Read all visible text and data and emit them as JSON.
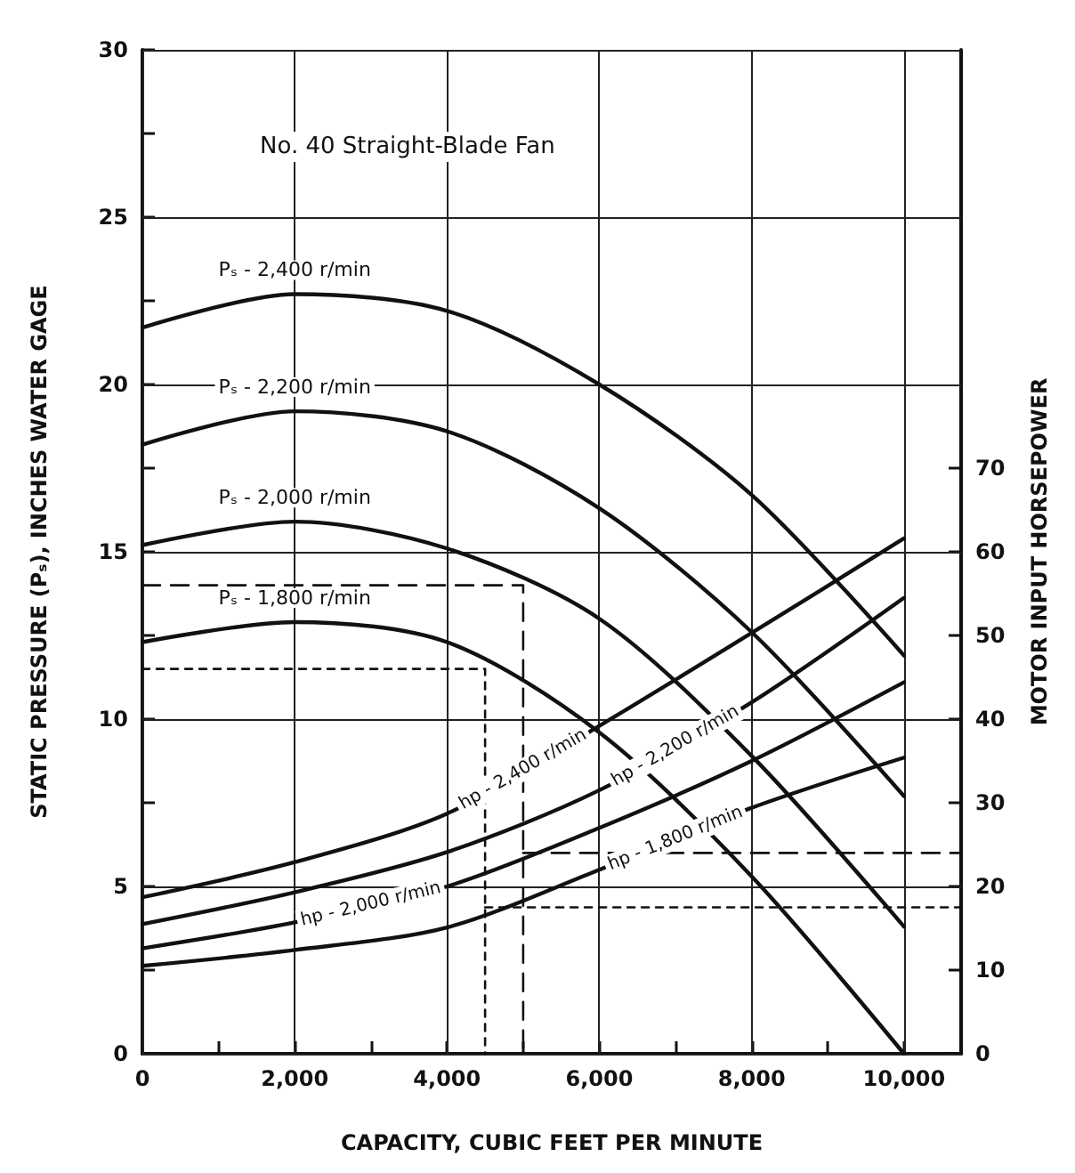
{
  "chart_data": {
    "type": "line",
    "annotations": [
      "No. 40 Straight-Blade Fan"
    ],
    "xlabel": "CAPACITY, CUBIC FEET PER MINUTE",
    "ylabel": "STATIC PRESSURE (Pₛ), INCHES WATER GAGE",
    "y2label": "MOTOR INPUT HORSEPOWER",
    "x": [
      0,
      2000,
      4000,
      6000,
      8000,
      10000
    ],
    "xlim": [
      0,
      10750
    ],
    "xticks": [
      0,
      {
        "value": 1000,
        "label": null
      },
      {
        "value": 2000,
        "label": "2,000"
      },
      {
        "value": 3000,
        "label": null
      },
      {
        "value": 4000,
        "label": "4,000"
      },
      {
        "value": 5000,
        "label": null
      },
      {
        "value": 6000,
        "label": "6,000"
      },
      {
        "value": 7000,
        "label": null
      },
      {
        "value": 8000,
        "label": "8,000"
      },
      {
        "value": 9000,
        "label": null
      },
      {
        "value": 10000,
        "label": "10,000"
      }
    ],
    "ylim": [
      0,
      30
    ],
    "yticks": [
      0,
      {
        "value": 2.5,
        "label": null
      },
      5,
      {
        "value": 7.5,
        "label": null
      },
      10,
      {
        "value": 12.5,
        "label": null
      },
      15,
      {
        "value": 17.5,
        "label": null
      },
      20,
      {
        "value": 22.5,
        "label": null
      },
      25,
      {
        "value": 27.5,
        "label": null
      },
      30
    ],
    "y2lim": [
      0,
      120
    ],
    "y2ticks": [
      0,
      10,
      20,
      30,
      40,
      50,
      60,
      70
    ],
    "grid": true,
    "legend": false,
    "marker": "none",
    "line_style": "solid",
    "series": [
      {
        "name": "Pₛ - 2,400 r/min",
        "color": "#111111",
        "values": [
          21.7,
          22.7,
          22.2,
          20.0,
          16.7,
          11.9
        ]
      },
      {
        "name": "Pₛ - 2,200 r/min",
        "color": "#111111",
        "values": [
          18.2,
          19.2,
          18.6,
          16.3,
          12.6,
          7.7
        ]
      },
      {
        "name": "Pₛ - 2,000 r/min",
        "color": "#111111",
        "values": [
          15.2,
          15.9,
          15.1,
          13.0,
          8.9,
          3.8
        ]
      },
      {
        "name": "Pₛ - 1,800 r/min",
        "color": "#111111",
        "values": [
          12.3,
          12.9,
          12.3,
          9.6,
          5.3,
          0
        ]
      },
      {
        "name": "hp - 2,400 r/min",
        "color": "#111111",
        "axis": "y2",
        "values": [
          18.7,
          22.9,
          28.7,
          39.2,
          50.3,
          61.6
        ]
      },
      {
        "name": "hp - 2,200 r/min",
        "color": "#111111",
        "axis": "y2",
        "values": [
          15.5,
          19.3,
          24.1,
          31.5,
          42.0,
          54.5
        ]
      },
      {
        "name": "hp - 2,000 r/min",
        "color": "#111111",
        "axis": "y2",
        "values": [
          12.6,
          15.7,
          20.0,
          27.0,
          35.0,
          44.4
        ]
      },
      {
        "name": "hp - 1,800 r/min",
        "color": "#111111",
        "axis": "y2",
        "values": [
          10.5,
          12.4,
          15.1,
          22.0,
          29.4,
          35.4
        ]
      },
      {
        "color": "#111111",
        "line_style": "dashed",
        "x": [
          0,
          5000,
          5000
        ],
        "values": [
          14,
          14,
          0
        ]
      },
      {
        "color": "#111111",
        "line_style": "dotted",
        "x": [
          0,
          4500,
          4500
        ],
        "values": [
          11.5,
          11.5,
          0
        ]
      },
      {
        "color": "#111111",
        "line_style": "dashed",
        "axis": "y2",
        "x": [
          5000,
          10750
        ],
        "values": [
          24,
          24
        ]
      },
      {
        "color": "#111111",
        "line_style": "dotted",
        "axis": "y2",
        "x": [
          4500,
          10750
        ],
        "values": [
          17.5,
          17.5
        ]
      }
    ]
  }
}
